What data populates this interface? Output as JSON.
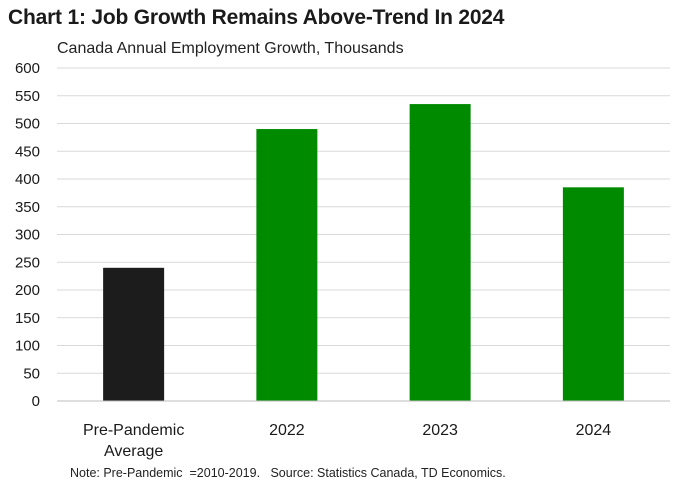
{
  "chart_data": {
    "type": "bar",
    "title": "Chart 1: Job Growth Remains Above-Trend In 2024",
    "subtitle": "Canada Annual Employment Growth, Thousands",
    "categories": [
      [
        "Pre-Pandemic",
        "Average"
      ],
      [
        "2022"
      ],
      [
        "2023"
      ],
      [
        "2024"
      ]
    ],
    "values": [
      240,
      490,
      535,
      385
    ],
    "colors": [
      "#1c1c1c",
      "#008a00",
      "#008a00",
      "#008a00"
    ],
    "ylim": [
      0,
      600
    ],
    "yticks": [
      "0",
      "50",
      "100",
      "150",
      "200",
      "250",
      "300",
      "350",
      "400",
      "450",
      "500",
      "550",
      "600"
    ],
    "grid": true,
    "legend": "none",
    "note": "Note: Pre-Pandemic  =2010-2019.   Source: Statistics Canada, TD Economics."
  }
}
